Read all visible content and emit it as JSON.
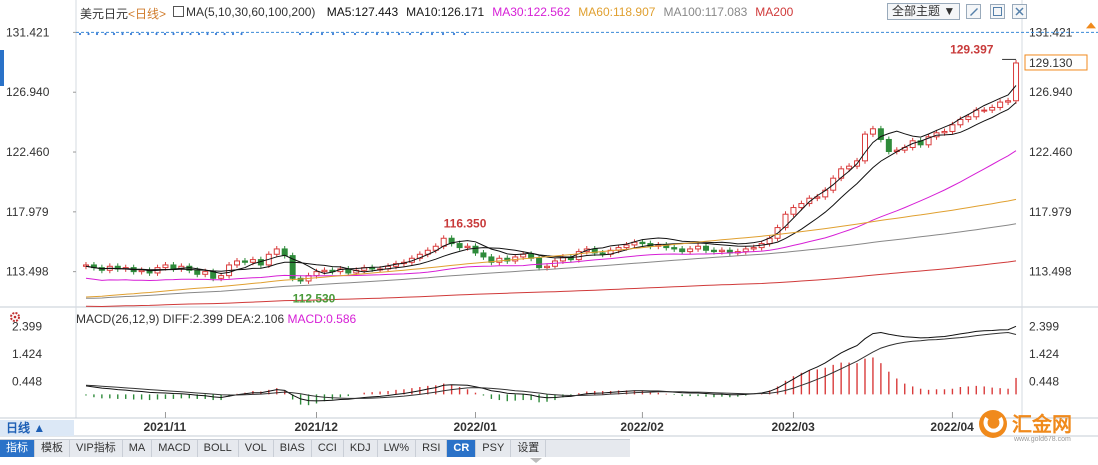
{
  "header": {
    "symbol": "美元日元",
    "period": "<日线>",
    "ma_label": "MA(5,10,30,60,100,200)",
    "ma_values": [
      {
        "text": "MA5:127.443",
        "color": "#111111"
      },
      {
        "text": "MA10:126.171",
        "color": "#1a1a1a"
      },
      {
        "text": "MA30:122.562",
        "color": "#d61fd6"
      },
      {
        "text": "MA60:118.907",
        "color": "#e0a030"
      },
      {
        "text": "MA100:117.083",
        "color": "#888888"
      },
      {
        "text": "MA200",
        "color": "#d03a3a"
      }
    ],
    "theme_button": "全部主题"
  },
  "macd_header": {
    "label": "MACD(26,12,9)",
    "diff": "DIFF:2.399",
    "dea": "DEA:2.106",
    "macd": "MACD:0.586"
  },
  "bottom": {
    "period_button": "日线 ▲",
    "tabs": [
      "指标",
      "模板",
      "VIP指标",
      "MA",
      "MACD",
      "BOLL",
      "VOL",
      "BIAS",
      "CCI",
      "KDJ",
      "LW%",
      "RSI",
      "CR",
      "PSY",
      "设置"
    ],
    "active_tab": "CR"
  },
  "watermark": {
    "text": "汇金网",
    "sub": "www.gold678.com"
  },
  "chart_data": {
    "type": "candlestick",
    "price_axis": {
      "ylim": [
        111.0,
        132.2
      ],
      "ticks": [
        131.421,
        126.94,
        122.46,
        117.979,
        113.498
      ]
    },
    "macd_axis": {
      "ylim": [
        -0.55,
        2.55
      ],
      "ticks": [
        2.399,
        1.424,
        0.448
      ]
    },
    "current_price": 129.13,
    "reference_line": 131.421,
    "annotations": [
      {
        "text": "129.397",
        "value": 129.397,
        "index": 116
      },
      {
        "text": "116.350",
        "value": 116.35,
        "index": 45
      },
      {
        "text": "112.530",
        "value": 112.53,
        "index": 26
      }
    ],
    "x_labels": [
      {
        "text": "2021/11",
        "index": 10
      },
      {
        "text": "2021/12",
        "index": 29
      },
      {
        "text": "2022/01",
        "index": 49
      },
      {
        "text": "2022/02",
        "index": 70
      },
      {
        "text": "2022/03",
        "index": 89
      },
      {
        "text": "2022/04",
        "index": 109
      }
    ],
    "closes": [
      114.0,
      113.8,
      113.6,
      113.9,
      113.7,
      113.8,
      113.5,
      113.6,
      113.4,
      113.8,
      114.0,
      113.7,
      113.9,
      113.6,
      113.3,
      113.5,
      113.0,
      113.2,
      114.0,
      114.3,
      114.2,
      114.4,
      114.0,
      114.8,
      115.2,
      114.7,
      113.0,
      112.8,
      113.2,
      113.5,
      113.6,
      113.5,
      113.7,
      113.4,
      113.6,
      113.8,
      113.7,
      113.7,
      113.9,
      114.1,
      114.2,
      114.5,
      114.8,
      115.1,
      115.4,
      116.0,
      115.6,
      115.3,
      115.4,
      114.9,
      114.6,
      114.2,
      114.5,
      114.3,
      114.6,
      114.8,
      114.5,
      113.8,
      113.9,
      114.3,
      114.6,
      114.4,
      115.0,
      115.2,
      114.9,
      114.8,
      115.1,
      115.3,
      115.5,
      115.7,
      115.6,
      115.4,
      115.5,
      115.3,
      115.2,
      115.0,
      115.2,
      115.4,
      115.1,
      115.0,
      115.1,
      114.9,
      115.0,
      115.2,
      115.3,
      115.6,
      116.0,
      116.8,
      117.8,
      118.3,
      118.6,
      119.0,
      119.1,
      119.6,
      120.5,
      121.2,
      121.4,
      121.8,
      123.8,
      124.2,
      123.4,
      122.5,
      122.6,
      122.8,
      123.3,
      123.0,
      123.6,
      123.9,
      124.0,
      124.5,
      124.9,
      125.1,
      125.6,
      125.6,
      125.8,
      126.2,
      126.3,
      129.13
    ],
    "ma_series": [
      {
        "name": "MA5",
        "color": "#111111",
        "start": 113.9,
        "end": 127.443
      },
      {
        "name": "MA10",
        "color": "#111111",
        "start": 113.9,
        "end": 126.171
      },
      {
        "name": "MA30",
        "color": "#d61fd6",
        "start": 113.0,
        "end": 122.562
      },
      {
        "name": "MA60",
        "color": "#e0a030",
        "start": 111.6,
        "end": 118.907
      },
      {
        "name": "MA100",
        "color": "#888888",
        "start": 111.5,
        "end": 117.083
      },
      {
        "name": "MA200",
        "color": "#d03a3a",
        "start": 110.9,
        "end": 114.3
      }
    ],
    "macd": {
      "diff": [
        0.3,
        0.26,
        0.22,
        0.2,
        0.17,
        0.15,
        0.12,
        0.1,
        0.07,
        0.06,
        0.05,
        0.03,
        0.02,
        0.0,
        -0.03,
        -0.05,
        -0.09,
        -0.11,
        -0.06,
        -0.01,
        0.02,
        0.06,
        0.06,
        0.11,
        0.17,
        0.14,
        -0.03,
        -0.16,
        -0.22,
        -0.23,
        -0.22,
        -0.21,
        -0.18,
        -0.17,
        -0.14,
        -0.11,
        -0.09,
        -0.07,
        -0.04,
        0.0,
        0.03,
        0.08,
        0.13,
        0.19,
        0.24,
        0.32,
        0.34,
        0.33,
        0.32,
        0.27,
        0.21,
        0.13,
        0.09,
        0.04,
        0.02,
        0.01,
        -0.02,
        -0.09,
        -0.12,
        -0.11,
        -0.08,
        -0.07,
        -0.02,
        0.02,
        0.04,
        0.05,
        0.07,
        0.09,
        0.11,
        0.13,
        0.13,
        0.12,
        0.12,
        0.1,
        0.08,
        0.06,
        0.05,
        0.05,
        0.03,
        0.01,
        0.01,
        -0.01,
        -0.01,
        0.0,
        0.02,
        0.05,
        0.11,
        0.22,
        0.38,
        0.54,
        0.7,
        0.85,
        0.97,
        1.11,
        1.29,
        1.46,
        1.6,
        1.72,
        1.96,
        2.14,
        2.18,
        2.12,
        2.07,
        2.03,
        2.01,
        1.99,
        2.0,
        2.02,
        2.04,
        2.08,
        2.13,
        2.17,
        2.22,
        2.24,
        2.25,
        2.27,
        2.28,
        2.4
      ],
      "dea": [
        0.32,
        0.31,
        0.29,
        0.27,
        0.25,
        0.23,
        0.21,
        0.19,
        0.17,
        0.15,
        0.13,
        0.11,
        0.09,
        0.07,
        0.05,
        0.03,
        0.01,
        -0.01,
        -0.02,
        -0.02,
        -0.01,
        0.0,
        0.01,
        0.03,
        0.06,
        0.08,
        0.06,
        0.02,
        -0.03,
        -0.07,
        -0.1,
        -0.12,
        -0.13,
        -0.14,
        -0.14,
        -0.14,
        -0.13,
        -0.12,
        -0.1,
        -0.08,
        -0.06,
        -0.03,
        0.0,
        0.04,
        0.08,
        0.13,
        0.17,
        0.2,
        0.23,
        0.24,
        0.23,
        0.21,
        0.19,
        0.16,
        0.13,
        0.11,
        0.08,
        0.05,
        0.01,
        -0.01,
        -0.03,
        -0.04,
        -0.04,
        -0.03,
        -0.02,
        -0.01,
        0.01,
        0.02,
        0.04,
        0.06,
        0.07,
        0.08,
        0.09,
        0.09,
        0.09,
        0.09,
        0.08,
        0.08,
        0.07,
        0.06,
        0.05,
        0.04,
        0.03,
        0.02,
        0.02,
        0.03,
        0.04,
        0.08,
        0.14,
        0.22,
        0.32,
        0.42,
        0.53,
        0.64,
        0.77,
        0.9,
        1.04,
        1.17,
        1.33,
        1.49,
        1.63,
        1.72,
        1.79,
        1.84,
        1.87,
        1.89,
        1.92,
        1.93,
        1.95,
        1.98,
        2.0,
        2.03,
        2.07,
        2.1,
        2.13,
        2.16,
        2.18,
        2.11
      ]
    }
  }
}
